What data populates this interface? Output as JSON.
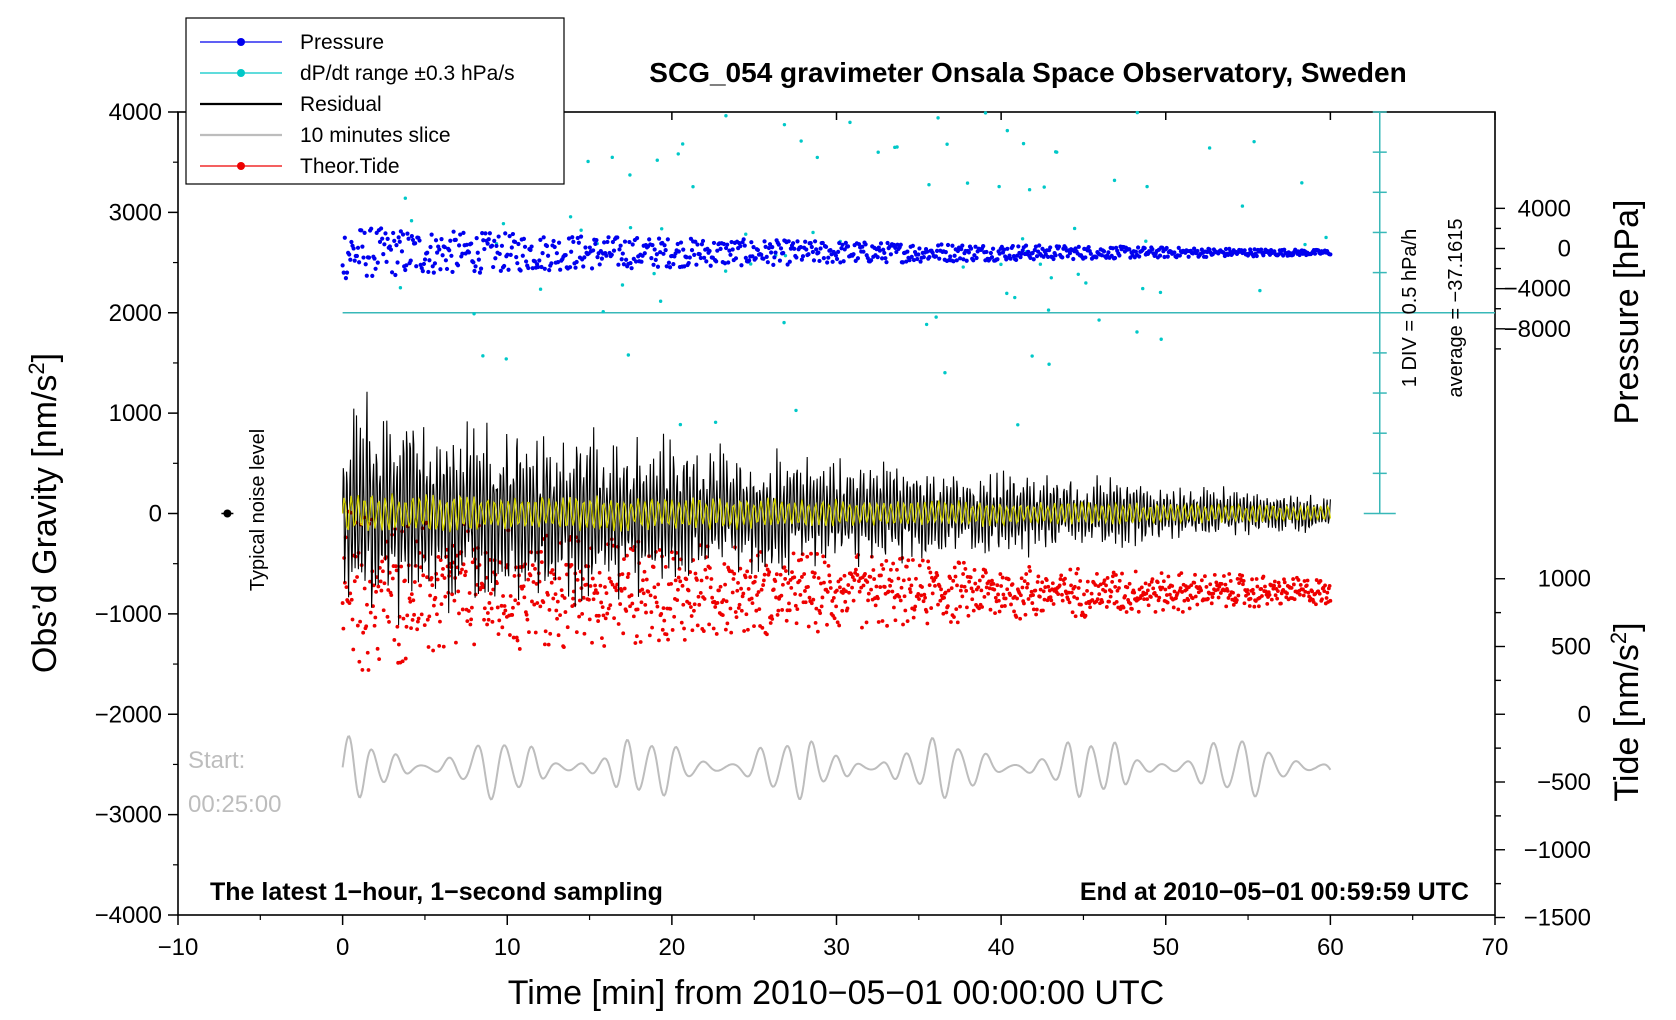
{
  "chart_data": {
    "type": "scatter",
    "title": "SCG_054 gravimeter Onsala Space Observatory, Sweden",
    "xlabel": "Time [min] from 2010−05−01 00:00:00 UTC",
    "ylabel_left": "Obs’d Gravity [nm/s",
    "ylabel_left_sup": "2",
    "ylabel_left_close": "]",
    "ylabel_right_top": "Pressure [hPa]",
    "ylabel_right_bottom": "Tide [nm/s",
    "ylabel_right_bottom_sup": "2",
    "ylabel_right_bottom_close": "]",
    "xlim": [
      -10,
      70
    ],
    "ylim_left": [
      -4000,
      4000
    ],
    "x_ticks": [
      "−10",
      "0",
      "10",
      "20",
      "30",
      "40",
      "50",
      "60",
      "70"
    ],
    "x_tick_values": [
      -10,
      0,
      10,
      20,
      30,
      40,
      50,
      60,
      70
    ],
    "y_left_ticks": [
      "4000",
      "3000",
      "2000",
      "1000",
      "0",
      "−1000",
      "−2000",
      "−3000",
      "−4000"
    ],
    "y_left_tick_values": [
      4000,
      3000,
      2000,
      1000,
      0,
      -1000,
      -2000,
      -3000,
      -4000
    ],
    "pressure_axis": {
      "gravity_at_0_hpa": 2640,
      "gravity_per_hpa": 0.1,
      "ticks": [
        "4000",
        "0",
        "−4000",
        "−8000"
      ],
      "tick_values": [
        4000,
        0,
        -4000,
        -8000
      ]
    },
    "tide_axis": {
      "gravity_at_0": -2000,
      "gravity_per_unit": 1.35,
      "ticks": [
        "1000",
        "500",
        "0",
        "−500",
        "−1000",
        "−1500"
      ],
      "tick_values": [
        1000,
        500,
        0,
        -500,
        -1000,
        -1500
      ]
    },
    "scale_bar": {
      "x": 63,
      "y_top": 4000,
      "y_bottom": 0,
      "divisions": 10,
      "label1": "1 DIV = 0.5 hPa/h",
      "label2": "average = −37.1615"
    },
    "reference_line_y": 2000,
    "noise_marker": {
      "x": -7,
      "y": 0,
      "label": "Typical noise level"
    },
    "start_label": "Start:",
    "start_time": "00:25:00",
    "bottom_left_note": "The latest 1−hour, 1−second sampling",
    "bottom_right_note": "End at 2010−05−01 00:59:59 UTC",
    "legend": [
      {
        "label": "Pressure",
        "color": "#0000ee",
        "style": "line-dot"
      },
      {
        "label": "dP/dt range ±0.3 hPa/s",
        "color": "#00c8c8",
        "style": "line-dot"
      },
      {
        "label": "Residual",
        "color": "#000000",
        "style": "line"
      },
      {
        "label": "10 minutes slice",
        "color": "#bdbdbd",
        "style": "line"
      },
      {
        "label": "Theor.Tide",
        "color": "#ee0000",
        "style": "line-dot"
      }
    ],
    "colors": {
      "pressure": "#0000ee",
      "dpdt": "#00c8c8",
      "residual": "#000000",
      "slice": "#bdbdbd",
      "tide": "#ee0000",
      "filtered": "#d4d400"
    },
    "series": [
      {
        "name": "Pressure",
        "x_range": [
          0,
          60
        ],
        "center": 2600,
        "spread_start": 280,
        "spread_end": 25
      },
      {
        "name": "Residual",
        "x_range": [
          0,
          60
        ],
        "center": 0,
        "spread_start": 1500,
        "spread_end": 200
      },
      {
        "name": "Theor.Tide",
        "x_range": [
          0,
          60
        ],
        "center": -780,
        "spread_start": 900,
        "spread_end": 130
      },
      {
        "name": "10 minutes slice",
        "x_range": [
          0,
          60
        ],
        "center": -2530,
        "spread_start": 330,
        "spread_end": 320
      },
      {
        "name": "dP/dt range ±0.3 hPa/s",
        "x_range": [
          3,
          60
        ],
        "y_range": [
          800,
          4000
        ]
      }
    ]
  }
}
